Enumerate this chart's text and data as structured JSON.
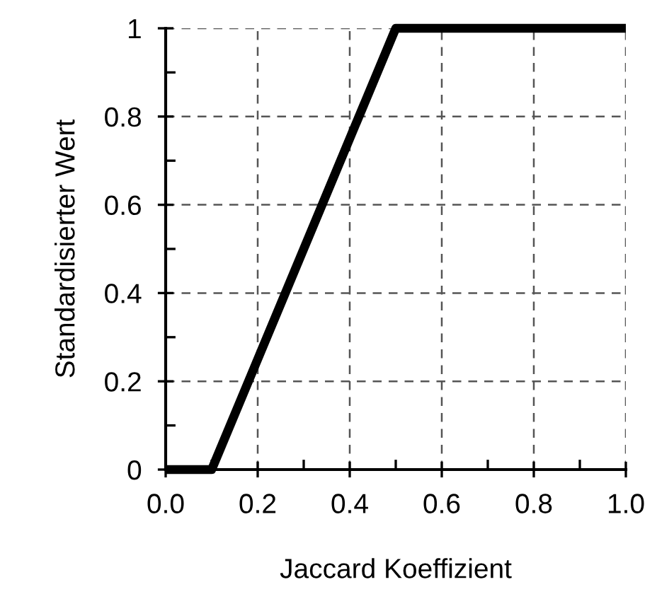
{
  "chart_data": {
    "type": "line",
    "xlabel": "Jaccard Koeffizient",
    "ylabel": "Standardisierter Wert",
    "x": [
      0.0,
      0.1,
      0.5,
      1.0
    ],
    "series": [
      {
        "color": "#000000",
        "values": [
          0,
          0,
          1,
          1
        ]
      }
    ],
    "xlim": [
      0.0,
      1.0
    ],
    "ylim": [
      0,
      1
    ],
    "xticks": [
      {
        "value": 0.0,
        "label": "0.0"
      },
      {
        "value": 0.2,
        "label": "0.2"
      },
      {
        "value": 0.4,
        "label": "0.4"
      },
      {
        "value": 0.6,
        "label": "0.6"
      },
      {
        "value": 0.8,
        "label": "0.8"
      },
      {
        "value": 1.0,
        "label": "1.0"
      }
    ],
    "yticks": [
      0,
      0.2,
      0.4,
      0.6,
      0.8,
      1
    ],
    "grid": true,
    "marker": "none",
    "line_style": "solid"
  }
}
